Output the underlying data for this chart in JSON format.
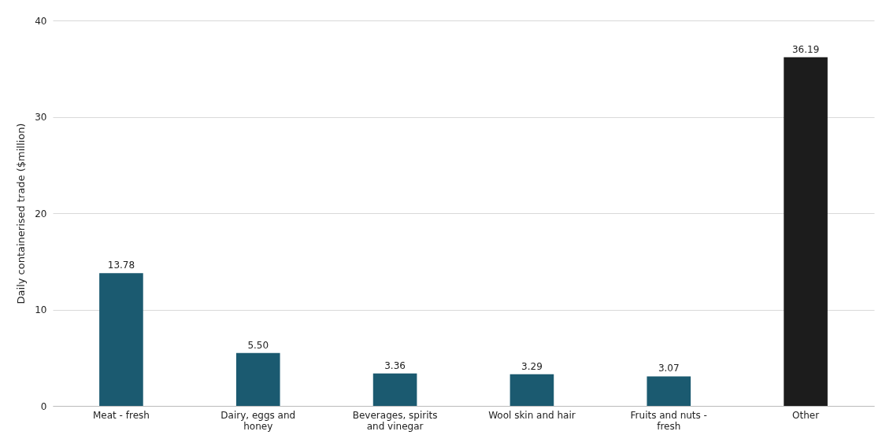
{
  "chart_data": {
    "type": "bar",
    "ylabel": "Daily containerised trade ($million)",
    "categories": [
      "Meat - fresh",
      "Dairy, eggs and honey",
      "Beverages, spirits and vinegar",
      "Wool skin and hair",
      "Fruits and nuts - fresh",
      "Other"
    ],
    "values": [
      13.78,
      5.5,
      3.36,
      3.29,
      3.07,
      36.19
    ],
    "value_labels": [
      "13.78",
      "5.50",
      "3.36",
      "3.29",
      "3.07",
      "36.19"
    ],
    "colors": [
      "#1b5a70",
      "#1b5a70",
      "#1b5a70",
      "#1b5a70",
      "#1b5a70",
      "#1c1c1c"
    ],
    "ylim": [
      0,
      40
    ],
    "yticks": [
      0,
      10,
      20,
      30,
      40
    ],
    "grid": "y"
  }
}
